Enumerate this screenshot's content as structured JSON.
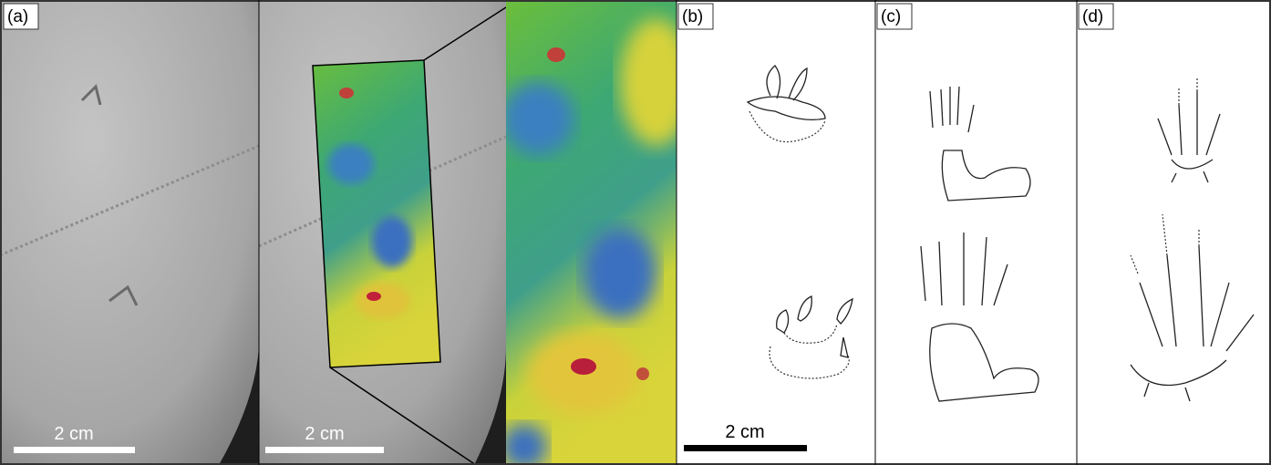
{
  "panels": [
    {
      "label": "(a)",
      "scale_bars": [
        "2 cm",
        "2 cm"
      ]
    },
    {
      "label": "(b)",
      "scale_bar": "2 cm"
    },
    {
      "label": "(c)"
    },
    {
      "label": "(d)"
    }
  ]
}
